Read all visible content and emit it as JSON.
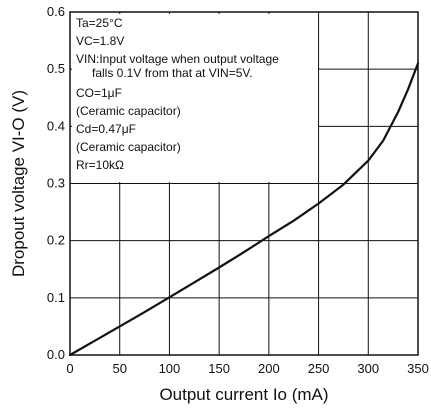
{
  "chart_data": {
    "type": "line",
    "xlabel": "Output current Io (mA)",
    "ylabel": "Dropout voltage VI-O (V)",
    "xlim": [
      0,
      350
    ],
    "ylim": [
      0,
      0.6
    ],
    "x_ticks": [
      "0",
      "50",
      "100",
      "150",
      "200",
      "250",
      "300",
      "350"
    ],
    "y_ticks": [
      "0.0",
      "0.1",
      "0.2",
      "0.3",
      "0.4",
      "0.5",
      "0.6"
    ],
    "grid": true,
    "conditions": [
      "Ta=25°C",
      "VC=1.8V",
      "VIN:Input voltage when output voltage",
      "falls 0.1V from that at VIN=5V.",
      "CO=1μF",
      "(Ceramic capacitor)",
      "Cd=0.47μF",
      "(Ceramic capacitor)",
      "Rr=10kΩ"
    ],
    "series": [
      {
        "x": [
          0,
          25,
          50,
          75,
          100,
          125,
          150,
          175,
          200,
          225,
          250,
          275,
          300,
          315,
          330,
          340,
          350
        ],
        "y": [
          0.0,
          0.025,
          0.05,
          0.075,
          0.101,
          0.127,
          0.153,
          0.18,
          0.208,
          0.235,
          0.265,
          0.298,
          0.34,
          0.375,
          0.425,
          0.465,
          0.51
        ]
      }
    ]
  }
}
